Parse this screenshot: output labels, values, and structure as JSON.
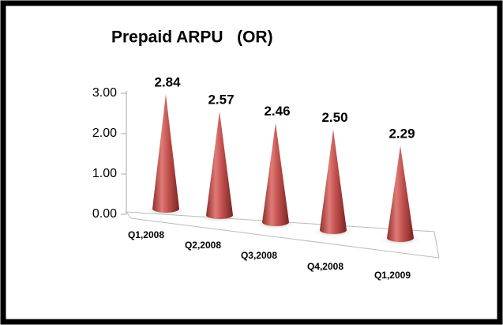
{
  "chart_data": {
    "type": "cone",
    "title": "Prepaid ARPU   (OR)",
    "categories": [
      "Q1,2008",
      "Q2,2008",
      "Q3,2008",
      "Q4,2008",
      "Q1,2009"
    ],
    "values": [
      2.84,
      2.57,
      2.46,
      2.5,
      2.29
    ],
    "value_labels": [
      "2.84",
      "2.57",
      "2.46",
      "2.50",
      "2.29"
    ],
    "color": "#c0504d",
    "ylim": [
      0,
      3
    ],
    "yticks": [
      {
        "value": 0,
        "label": "0.00"
      },
      {
        "value": 1,
        "label": "1.00"
      },
      {
        "value": 2,
        "label": "2.00"
      },
      {
        "value": 3,
        "label": "3.00"
      }
    ]
  }
}
